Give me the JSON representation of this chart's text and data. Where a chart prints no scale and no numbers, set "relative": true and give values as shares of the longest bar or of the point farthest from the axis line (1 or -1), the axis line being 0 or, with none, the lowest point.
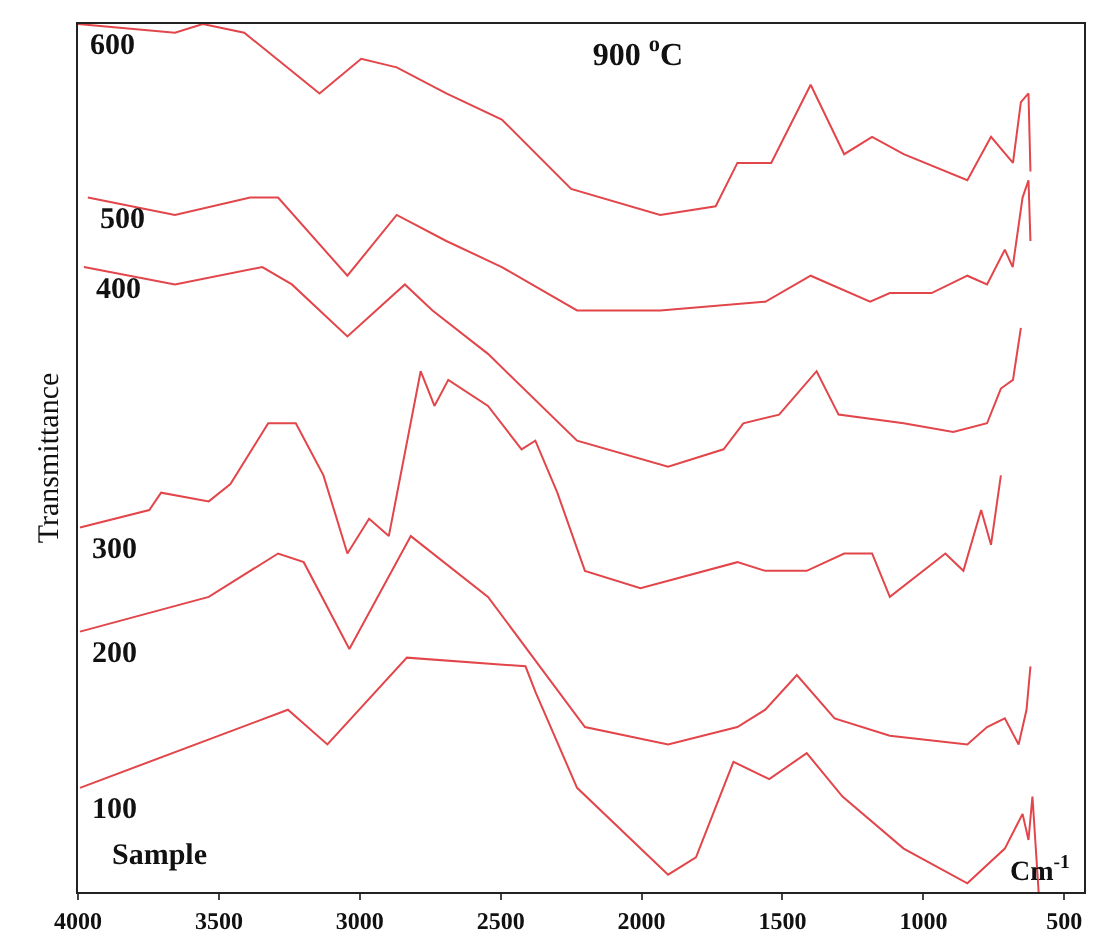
{
  "chart_data": {
    "type": "line",
    "title": "900 $^{o}$C",
    "xlabel": "Cm$^{-1}$",
    "ylabel": "Transmittance",
    "relative": true,
    "xlim": [
      4000,
      430
    ],
    "xticks": [
      4000,
      3500,
      3000,
      2500,
      2000,
      1500,
      1000,
      500
    ],
    "grid": false,
    "legend": false,
    "marker": "none",
    "line_style": "solid",
    "annotations": [
      "Sample"
    ],
    "series": [
      {
        "name": "600",
        "color": "#e2454a",
        "x": [
          4000,
          3656,
          3557,
          3410,
          3143,
          2995,
          2869,
          2693,
          2496,
          2250,
          1934,
          1737,
          1660,
          1540,
          1400,
          1281,
          1182,
          1070,
          844,
          760,
          682,
          654,
          627,
          620
        ],
        "values": [
          1.0,
          0.99,
          1.0,
          0.99,
          0.92,
          0.96,
          0.95,
          0.92,
          0.89,
          0.81,
          0.78,
          0.79,
          0.84,
          0.84,
          0.93,
          0.85,
          0.87,
          0.85,
          0.82,
          0.87,
          0.84,
          0.91,
          0.92,
          0.83
        ]
      },
      {
        "name": "500",
        "color": "#e2454a",
        "x": [
          3965,
          3656,
          3389,
          3290,
          3044,
          2869,
          2693,
          2496,
          2229,
          1934,
          1561,
          1400,
          1189,
          1119,
          971,
          844,
          774,
          711,
          683,
          648,
          627,
          620
        ],
        "values": [
          0.8,
          0.78,
          0.8,
          0.8,
          0.71,
          0.78,
          0.75,
          0.72,
          0.67,
          0.67,
          0.68,
          0.71,
          0.68,
          0.69,
          0.69,
          0.71,
          0.7,
          0.74,
          0.72,
          0.8,
          0.82,
          0.75
        ]
      },
      {
        "name": "400",
        "color": "#e2454a",
        "x": [
          3979,
          3656,
          3346,
          3241,
          3044,
          2840,
          2742,
          2545,
          2229,
          1906,
          1709,
          1639,
          1512,
          1379,
          1301,
          1070,
          894,
          774,
          725,
          682,
          654
        ],
        "values": [
          0.72,
          0.7,
          0.72,
          0.7,
          0.64,
          0.7,
          0.67,
          0.62,
          0.52,
          0.49,
          0.51,
          0.54,
          0.55,
          0.6,
          0.55,
          0.54,
          0.53,
          0.54,
          0.58,
          0.59,
          0.65
        ]
      },
      {
        "name": "300",
        "color": "#e2454a",
        "x": [
          3993,
          3747,
          3705,
          3536,
          3459,
          3325,
          3227,
          3129,
          3044,
          2967,
          2897,
          2784,
          2735,
          2686,
          2545,
          2426,
          2377,
          2299,
          2201,
          2004,
          1660,
          1561,
          1414,
          1281,
          1182,
          1119,
          922,
          858,
          795,
          760,
          725
        ],
        "values": [
          0.42,
          0.44,
          0.46,
          0.45,
          0.47,
          0.54,
          0.54,
          0.48,
          0.39,
          0.43,
          0.41,
          0.6,
          0.56,
          0.59,
          0.56,
          0.51,
          0.52,
          0.46,
          0.37,
          0.35,
          0.38,
          0.37,
          0.37,
          0.39,
          0.39,
          0.34,
          0.39,
          0.37,
          0.44,
          0.4,
          0.48
        ]
      },
      {
        "name": "200",
        "color": "#e2454a",
        "x": [
          3993,
          3536,
          3290,
          3199,
          3037,
          2819,
          2545,
          2201,
          1906,
          1660,
          1561,
          1449,
          1315,
          1119,
          844,
          774,
          711,
          662,
          634,
          620
        ],
        "values": [
          0.3,
          0.34,
          0.39,
          0.38,
          0.28,
          0.41,
          0.34,
          0.19,
          0.17,
          0.19,
          0.21,
          0.25,
          0.2,
          0.18,
          0.17,
          0.19,
          0.2,
          0.17,
          0.21,
          0.26
        ]
      },
      {
        "name": "100",
        "color": "#e2454a",
        "x": [
          3993,
          3255,
          3115,
          2833,
          2412,
          2376,
          2229,
          1906,
          1807,
          1674,
          1547,
          1414,
          1287,
          1070,
          844,
          711,
          648,
          627,
          613,
          591
        ],
        "values": [
          0.12,
          0.21,
          0.17,
          0.27,
          0.26,
          0.23,
          0.12,
          0.02,
          0.04,
          0.15,
          0.13,
          0.16,
          0.11,
          0.05,
          0.01,
          0.05,
          0.09,
          0.06,
          0.11,
          0.0
        ]
      }
    ]
  }
}
